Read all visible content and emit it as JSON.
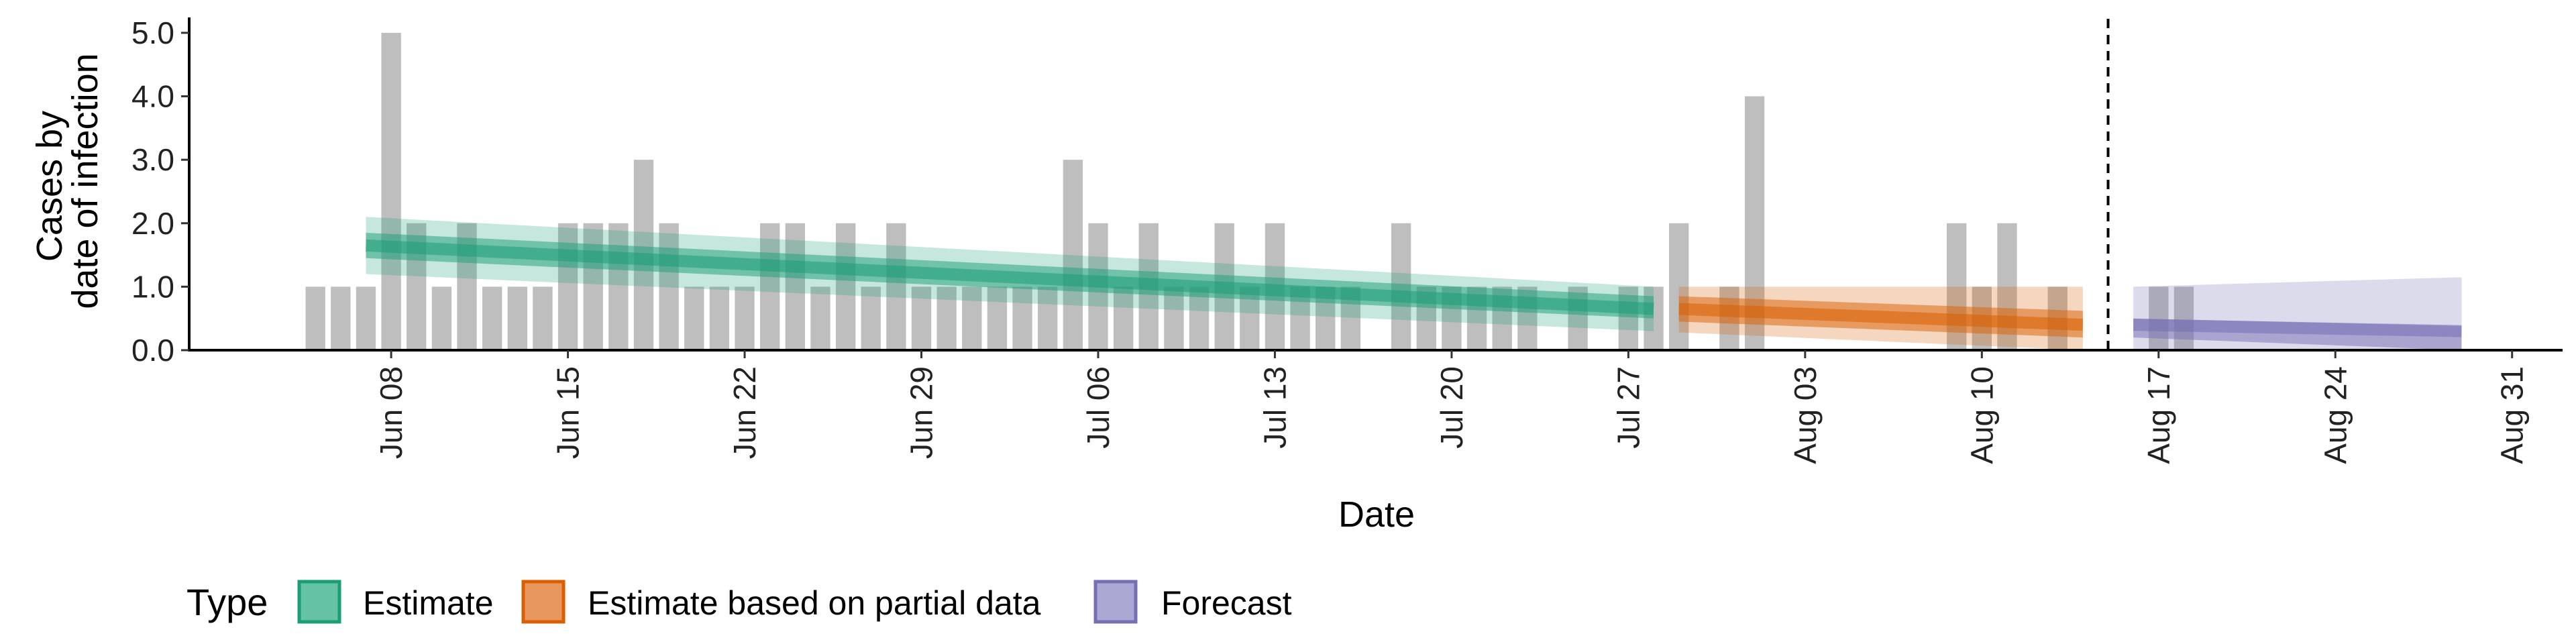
{
  "chart_data": {
    "type": "bar",
    "title": "",
    "xlabel": "Date",
    "ylabel_lines": [
      "Cases by",
      "date of infection"
    ],
    "y_ticks": [
      "0.0",
      "1.0",
      "2.0",
      "3.0",
      "4.0",
      "5.0"
    ],
    "ylim": [
      0,
      5.2
    ],
    "x_ticks": [
      {
        "date": "2020-06-08",
        "label": "Jun 08"
      },
      {
        "date": "2020-06-15",
        "label": "Jun 15"
      },
      {
        "date": "2020-06-22",
        "label": "Jun 22"
      },
      {
        "date": "2020-06-29",
        "label": "Jun 29"
      },
      {
        "date": "2020-07-06",
        "label": "Jul 06"
      },
      {
        "date": "2020-07-13",
        "label": "Jul 13"
      },
      {
        "date": "2020-07-20",
        "label": "Jul 20"
      },
      {
        "date": "2020-07-27",
        "label": "Jul 27"
      },
      {
        "date": "2020-08-03",
        "label": "Aug 03"
      },
      {
        "date": "2020-08-10",
        "label": "Aug 10"
      },
      {
        "date": "2020-08-17",
        "label": "Aug 17"
      },
      {
        "date": "2020-08-24",
        "label": "Aug 24"
      },
      {
        "date": "2020-08-31",
        "label": "Aug 31"
      }
    ],
    "x_range": [
      "2020-05-31",
      "2020-09-02"
    ],
    "vline_date": "2020-08-15",
    "bar_color": "#bebebe",
    "bars": {
      "start_date": "2020-06-05",
      "values": [
        1,
        1,
        1,
        5,
        2,
        1,
        2,
        1,
        1,
        1,
        2,
        2,
        2,
        3,
        2,
        1,
        1,
        1,
        2,
        2,
        1,
        2,
        1,
        2,
        1,
        1,
        1,
        1,
        1,
        1,
        3,
        2,
        1,
        2,
        1,
        1,
        2,
        1,
        2,
        1,
        1,
        1,
        0,
        2,
        1,
        1,
        1,
        1,
        1,
        0,
        1,
        0,
        1,
        1,
        2,
        0,
        1,
        4,
        0,
        0,
        0,
        0,
        0,
        0,
        0,
        2,
        1,
        2,
        0,
        1,
        0,
        0,
        0,
        1,
        1
      ]
    },
    "series": [
      {
        "name": "Estimate",
        "color": "#1b9e77",
        "from": "2020-06-07",
        "to": "2020-07-28",
        "median": [
          1.65,
          0.65
        ],
        "inner": [
          [
            1.45,
            1.85
          ],
          [
            0.5,
            0.85
          ]
        ],
        "outer": [
          [
            1.2,
            2.1
          ],
          [
            0.3,
            1.0
          ]
        ]
      },
      {
        "name": "Estimate based on partial data",
        "color": "#d95f02",
        "from": "2020-07-29",
        "to": "2020-08-14",
        "median": [
          0.65,
          0.4
        ],
        "inner": [
          [
            0.45,
            0.85
          ],
          [
            0.2,
            0.62
          ]
        ],
        "outer": [
          [
            0.28,
            1.0
          ],
          [
            0.0,
            1.0
          ]
        ]
      },
      {
        "name": "Forecast",
        "color": "#7570b3",
        "from": "2020-08-16",
        "to": "2020-08-29",
        "median": [
          0.4,
          0.3
        ],
        "inner": [
          [
            0.2,
            0.5
          ],
          [
            0.0,
            0.38
          ]
        ],
        "outer": [
          [
            0.0,
            1.0
          ],
          [
            0.0,
            1.15
          ]
        ]
      }
    ],
    "legend": {
      "title": "Type",
      "position": "bottom",
      "items": [
        {
          "label": "Estimate",
          "fill": "#66c2a5",
          "stroke": "#1b9e77"
        },
        {
          "label": "Estimate based on partial data",
          "fill": "#e8975e",
          "stroke": "#d95f02"
        },
        {
          "label": "Forecast",
          "fill": "#aba9d4",
          "stroke": "#7570b3"
        }
      ]
    }
  }
}
